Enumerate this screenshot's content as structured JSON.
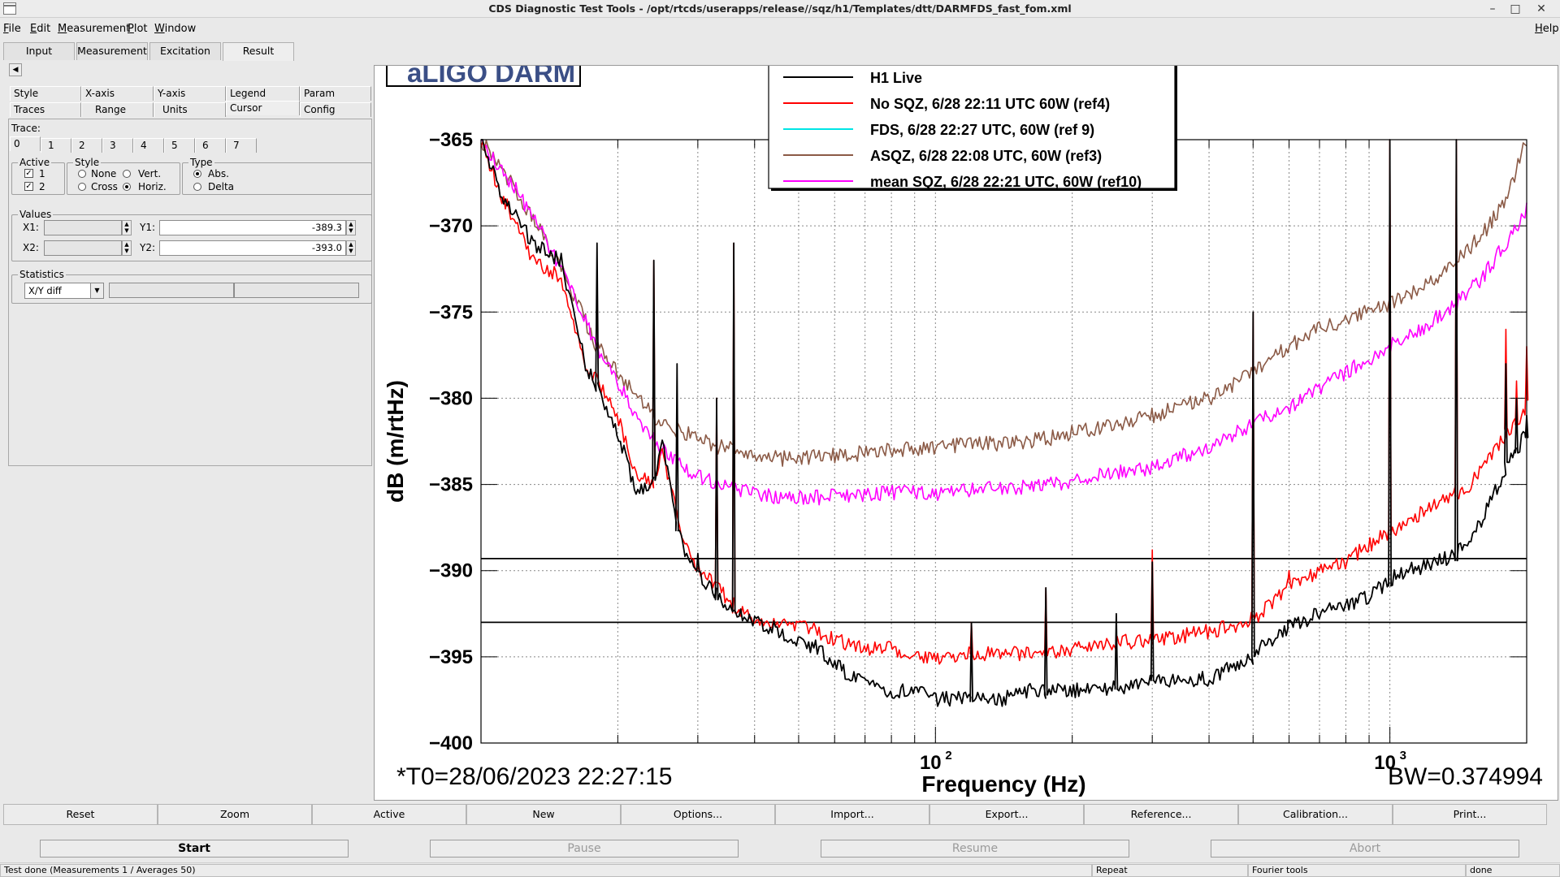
{
  "window": {
    "title": "CDS Diagnostic Test Tools - /opt/rtcds/userapps/release//sqz/h1/Templates/dtt/DARMFDS_fast_fom.xml",
    "minimize": "–",
    "maximize": "□",
    "close": "✕"
  },
  "menu": {
    "file_u": "F",
    "file_rest": "ile",
    "edit_u": "E",
    "edit_rest": "dit",
    "measurement_u": "M",
    "measurement_rest": "easurement",
    "plot_u": "P",
    "plot_rest": "lot",
    "window_u": "W",
    "window_rest": "indow",
    "help_u": "H",
    "help_rest": "elp"
  },
  "tabs": [
    "Input",
    "Measurement",
    "Excitation",
    "Result"
  ],
  "side": {
    "collapse": "◀",
    "subtabs_row1": [
      "Style",
      "X-axis",
      "Y-axis",
      "Legend",
      "Param"
    ],
    "subtabs_row2": [
      "Traces",
      "Range",
      "Units",
      "Cursor",
      "Config"
    ],
    "trace_label": "Trace:",
    "trace_tabs": [
      "0",
      "1",
      "2",
      "3",
      "4",
      "5",
      "6",
      "7"
    ],
    "active_label": "Active",
    "active_1": "1",
    "active_2": "2",
    "style_label": "Style",
    "style_none": "None",
    "style_vert": "Vert.",
    "style_cross": "Cross",
    "style_horiz": "Horiz.",
    "type_label": "Type",
    "type_abs": "Abs.",
    "type_delta": "Delta",
    "values_label": "Values",
    "x1_label": "X1:",
    "x2_label": "X2:",
    "y1_label": "Y1:",
    "y2_label": "Y2:",
    "y1_value": "-389.3",
    "y2_value": "-393.0",
    "statistics_label": "Statistics",
    "stat_select": "X/Y diff",
    "spin_up": "▲",
    "spin_down": "▼",
    "dd_arrow": "▼"
  },
  "buttons_row": [
    "Reset",
    "Zoom",
    "Active",
    "New",
    "Options...",
    "Import...",
    "Export...",
    "Reference...",
    "Calibration...",
    "Print..."
  ],
  "control_buttons": [
    "Start",
    "Pause",
    "Resume",
    "Abort"
  ],
  "status": {
    "main": "Test done (Measurements 1 / Averages 50)",
    "repeat": "Repeat",
    "tools": "Fourier tools",
    "state": "done"
  },
  "chart_data": {
    "type": "line",
    "title": "aLIGO DARM",
    "xlabel": "Frequency (Hz)",
    "ylabel": "dB (m/rtHz)",
    "xscale": "log",
    "xlim": [
      10,
      2000
    ],
    "ylim": [
      -400,
      -365
    ],
    "xticks": [
      100,
      1000
    ],
    "xtick_labels": [
      "10",
      "10"
    ],
    "xtick_exponents": [
      "2",
      "3"
    ],
    "yticks": [
      -400,
      -395,
      -390,
      -385,
      -380,
      -375,
      -370,
      -365
    ],
    "ytick_labels": [
      "−400",
      "−395",
      "−390",
      "−385",
      "−380",
      "−375",
      "−370",
      "−365"
    ],
    "grid": true,
    "legend_position": "top",
    "t0_text": "*T0=28/06/2023 22:27:15",
    "bw_text": "BW=0.374994",
    "cursor_lines": [
      -389.3,
      -393.0
    ],
    "series": [
      {
        "name": "H1 Live",
        "color": "#000000",
        "x": [
          10,
          11,
          13,
          15,
          17,
          20,
          22,
          24,
          25,
          26,
          28,
          30,
          33,
          36,
          38,
          40,
          45,
          50,
          55,
          60,
          70,
          80,
          90,
          100,
          120,
          140,
          160,
          180,
          200,
          250,
          300,
          350,
          400,
          450,
          500,
          520,
          560,
          600,
          700,
          800,
          900,
          1000,
          1100,
          1200,
          1400,
          1500,
          1700,
          1900,
          2000
        ],
        "y": [
          -365,
          -368,
          -371,
          -372,
          -378,
          -382,
          -385.5,
          -385,
          -382,
          -385,
          -389,
          -390,
          -391.5,
          -392.5,
          -392.5,
          -392.8,
          -393.5,
          -394,
          -394.5,
          -395.5,
          -396.5,
          -397,
          -397,
          -397.5,
          -397.3,
          -397.5,
          -397,
          -397,
          -397,
          -396.8,
          -396.5,
          -396.3,
          -396.3,
          -395.5,
          -395,
          -394.5,
          -393.8,
          -393.3,
          -392.5,
          -392,
          -391.5,
          -390.5,
          -390,
          -389.8,
          -389,
          -388.5,
          -385.5,
          -383,
          -382
        ],
        "peaks": [
          [
            18,
            -371
          ],
          [
            24,
            -372
          ],
          [
            27,
            -378
          ],
          [
            30,
            -389
          ],
          [
            33,
            -380
          ],
          [
            36,
            -371
          ],
          [
            120,
            -393
          ],
          [
            175,
            -391
          ],
          [
            250,
            -392.5
          ],
          [
            300,
            -389.5
          ],
          [
            500,
            -375
          ],
          [
            600,
            -393
          ],
          [
            1000,
            -365
          ],
          [
            1400,
            -365
          ],
          [
            1800,
            -378
          ],
          [
            1900,
            -380
          ],
          [
            2000,
            -381
          ]
        ]
      },
      {
        "name": "No SQZ, 6/28 22:11 UTC 60W (ref4)",
        "color": "#ff0000",
        "x": [
          10,
          11,
          13,
          15,
          17,
          20,
          22,
          24,
          25,
          26,
          28,
          30,
          33,
          36,
          38,
          40,
          45,
          50,
          55,
          60,
          70,
          80,
          90,
          100,
          120,
          140,
          160,
          180,
          200,
          250,
          300,
          350,
          400,
          450,
          500,
          560,
          600,
          700,
          800,
          900,
          1000,
          1100,
          1200,
          1400,
          1500,
          1700,
          1900,
          2000
        ],
        "y": [
          -365,
          -368,
          -372,
          -373,
          -378,
          -381,
          -384.5,
          -385,
          -383,
          -385,
          -388.5,
          -389.8,
          -391,
          -392,
          -392.5,
          -392.7,
          -393,
          -393.3,
          -393.5,
          -394,
          -394.5,
          -394.5,
          -395,
          -395,
          -394.8,
          -394.8,
          -394.8,
          -394.7,
          -394.5,
          -394.2,
          -394,
          -393.8,
          -393.5,
          -393.2,
          -392.8,
          -391.8,
          -390.8,
          -390,
          -389.5,
          -388.5,
          -387.8,
          -387,
          -386.5,
          -385.5,
          -385,
          -383,
          -381.5,
          -380.5
        ],
        "peaks": [
          [
            24,
            -372
          ],
          [
            33,
            -380
          ],
          [
            36,
            -371
          ],
          [
            120,
            -393
          ],
          [
            175,
            -391
          ],
          [
            300,
            -388.8
          ],
          [
            500,
            -375
          ],
          [
            600,
            -390
          ],
          [
            1000,
            -365
          ],
          [
            1400,
            -365
          ],
          [
            1800,
            -376
          ],
          [
            1900,
            -379
          ],
          [
            2000,
            -377
          ]
        ]
      },
      {
        "name": "FDS, 6/28 22:27 UTC, 60W (ref 9)",
        "color": "#00e5e5",
        "x": [],
        "y": [],
        "peaks": []
      },
      {
        "name": "ASQZ, 6/28 22:08 UTC, 60W (ref3)",
        "color": "#8b5a46",
        "x": [
          10,
          12,
          14,
          16,
          18,
          20,
          22,
          25,
          28,
          30,
          33,
          36,
          40,
          45,
          50,
          60,
          70,
          80,
          100,
          120,
          150,
          180,
          200,
          250,
          300,
          400,
          500,
          600,
          700,
          800,
          1000,
          1200,
          1400,
          1600,
          1800,
          2000
        ],
        "y": [
          -365,
          -368,
          -371,
          -374,
          -377,
          -378.5,
          -380,
          -381.5,
          -382,
          -382.3,
          -382.8,
          -383,
          -383.3,
          -383.5,
          -383.5,
          -383.3,
          -383.2,
          -383,
          -382.8,
          -382.7,
          -382.6,
          -382.3,
          -382,
          -381.5,
          -381,
          -380,
          -378.5,
          -377,
          -376,
          -375.5,
          -374.5,
          -373.5,
          -372,
          -370.5,
          -368.5,
          -365
        ]
      },
      {
        "name": "mean SQZ, 6/28 22:21 UTC, 60W (ref10)",
        "color": "#ff00ff",
        "x": [
          10,
          12,
          14,
          16,
          18,
          20,
          22,
          25,
          28,
          30,
          33,
          36,
          40,
          45,
          50,
          60,
          70,
          80,
          100,
          120,
          150,
          180,
          200,
          250,
          300,
          400,
          500,
          600,
          700,
          800,
          1000,
          1200,
          1400,
          1600,
          1800,
          2000
        ],
        "y": [
          -365,
          -368,
          -371,
          -374,
          -377,
          -379,
          -381,
          -383,
          -384,
          -384.5,
          -385,
          -385.3,
          -385.5,
          -385.7,
          -385.8,
          -385.7,
          -385.6,
          -385.5,
          -385.5,
          -385.3,
          -385.2,
          -385,
          -384.8,
          -384.3,
          -384,
          -382.8,
          -381.5,
          -380.5,
          -379.5,
          -378.5,
          -377,
          -375.8,
          -374.5,
          -373,
          -371,
          -369
        ]
      }
    ]
  }
}
